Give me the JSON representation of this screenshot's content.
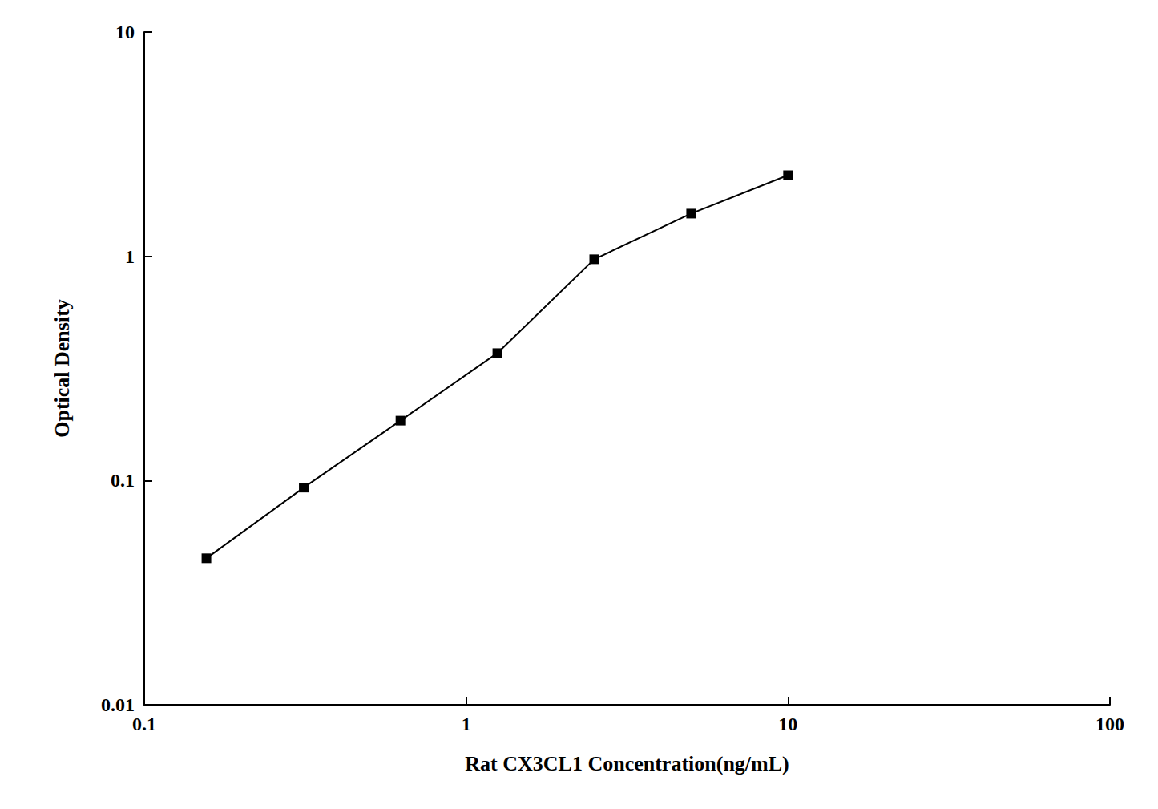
{
  "chart_data": {
    "type": "line",
    "xlabel": "Rat CX3CL1 Concentration(ng/mL)",
    "ylabel": "Optical Density",
    "x": [
      0.156,
      0.313,
      0.625,
      1.25,
      2.5,
      5.0,
      10.0
    ],
    "values": [
      0.045,
      0.093,
      0.185,
      0.37,
      0.97,
      1.55,
      2.3
    ],
    "xlim": [
      0.1,
      100
    ],
    "ylim": [
      0.01,
      10
    ],
    "xticks": [
      0.1,
      1,
      10,
      100
    ],
    "yticks": [
      0.01,
      0.1,
      1,
      10
    ],
    "log": true,
    "grid": false,
    "color": "#000000",
    "marker": "square"
  }
}
